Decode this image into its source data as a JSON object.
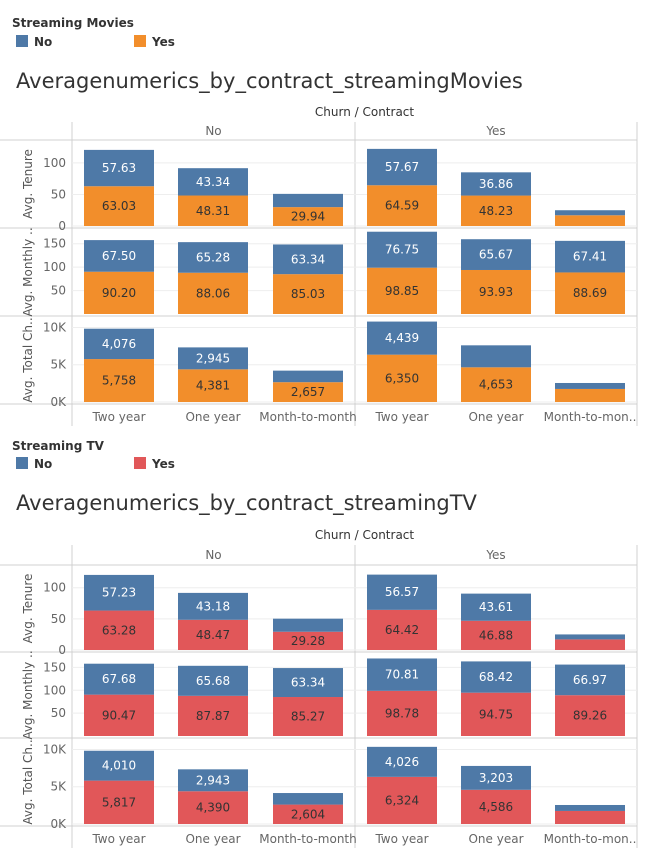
{
  "chart_data": [
    {
      "type": "bar",
      "stacked": true,
      "legend_title": "Streaming Movies",
      "legend": [
        {
          "label": "No",
          "color": "#4e79a7"
        },
        {
          "label": "Yes",
          "color": "#f28e2b"
        }
      ],
      "title": "Averagenumerics_by_contract_streamingMovies",
      "header_title": "Churn / Contract",
      "groups": [
        "No",
        "Yes"
      ],
      "categories": [
        "Two year",
        "One year",
        "Month-to-month"
      ],
      "category_labels": [
        [
          "Two year",
          "One year",
          "Month-to-month"
        ],
        [
          "Two year",
          "One year",
          "Month-to-mon.."
        ]
      ],
      "grid": true,
      "panels": [
        {
          "ylabel": "Avg. Tenure",
          "ylim": [
            0,
            130
          ],
          "ticks": [
            0,
            50,
            100
          ],
          "tick_labels": [
            "0",
            "50",
            "100"
          ],
          "values": {
            "No": {
              "No": [
                57.63,
                43.34,
                21.0
              ],
              "Yes": [
                63.03,
                48.31,
                29.94
              ]
            },
            "Yes": {
              "No": [
                57.67,
                36.86,
                8.0
              ],
              "Yes": [
                64.59,
                48.23,
                17.0
              ]
            }
          },
          "labels": {
            "No": {
              "No": [
                "57.63",
                "43.34",
                ""
              ],
              "Yes": [
                "63.03",
                "48.31",
                "29.94"
              ]
            },
            "Yes": {
              "No": [
                "57.67",
                "36.86",
                ""
              ],
              "Yes": [
                "64.59",
                "48.23",
                ""
              ]
            }
          }
        },
        {
          "ylabel": "Avg. Monthly ..",
          "ylim": [
            0,
            175
          ],
          "ticks": [
            50,
            100,
            150
          ],
          "tick_labels": [
            "50",
            "100",
            "150"
          ],
          "values": {
            "No": {
              "No": [
                67.5,
                65.28,
                63.34
              ],
              "Yes": [
                90.2,
                88.06,
                85.03
              ]
            },
            "Yes": {
              "No": [
                76.75,
                65.67,
                67.41
              ],
              "Yes": [
                98.85,
                93.93,
                88.69
              ]
            }
          },
          "labels": {
            "No": {
              "No": [
                "67.50",
                "65.28",
                "63.34"
              ],
              "Yes": [
                "90.20",
                "88.06",
                "85.03"
              ]
            },
            "Yes": {
              "No": [
                "76.75",
                "65.67",
                "67.41"
              ],
              "Yes": [
                "98.85",
                "93.93",
                "88.69"
              ]
            }
          }
        },
        {
          "ylabel": "Avg. Total Ch..",
          "ylim": [
            0,
            11000
          ],
          "ticks": [
            0,
            5000,
            10000
          ],
          "tick_labels": [
            "0K",
            "5K",
            "10K"
          ],
          "values": {
            "No": {
              "No": [
                4076,
                2945,
                1550
              ],
              "Yes": [
                5758,
                4381,
                2657
              ]
            },
            "Yes": {
              "No": [
                4439,
                2950,
                800
              ],
              "Yes": [
                6350,
                4653,
                1750
              ]
            }
          },
          "labels": {
            "No": {
              "No": [
                "4,076",
                "2,945",
                ""
              ],
              "Yes": [
                "5,758",
                "4,381",
                "2,657"
              ]
            },
            "Yes": {
              "No": [
                "4,439",
                "",
                ""
              ],
              "Yes": [
                "6,350",
                "4,653",
                ""
              ]
            }
          }
        }
      ]
    },
    {
      "type": "bar",
      "stacked": true,
      "legend_title": "Streaming TV",
      "legend": [
        {
          "label": "No",
          "color": "#4e79a7"
        },
        {
          "label": "Yes",
          "color": "#e15759"
        }
      ],
      "title": "Averagenumerics_by_contract_streamingTV",
      "header_title": "Churn / Contract",
      "groups": [
        "No",
        "Yes"
      ],
      "categories": [
        "Two year",
        "One year",
        "Month-to-month"
      ],
      "category_labels": [
        [
          "Two year",
          "One year",
          "Month-to-month"
        ],
        [
          "Two year",
          "One year",
          "Month-to-mon.."
        ]
      ],
      "grid": true,
      "panels": [
        {
          "ylabel": "Avg. Tenure",
          "ylim": [
            0,
            130
          ],
          "ticks": [
            0,
            50,
            100
          ],
          "tick_labels": [
            "0",
            "50",
            "100"
          ],
          "values": {
            "No": {
              "No": [
                57.23,
                43.18,
                21.0
              ],
              "Yes": [
                63.28,
                48.47,
                29.28
              ]
            },
            "Yes": {
              "No": [
                56.57,
                43.61,
                8.0
              ],
              "Yes": [
                64.42,
                46.88,
                17.0
              ]
            }
          },
          "labels": {
            "No": {
              "No": [
                "57.23",
                "43.18",
                ""
              ],
              "Yes": [
                "63.28",
                "48.47",
                "29.28"
              ]
            },
            "Yes": {
              "No": [
                "56.57",
                "43.61",
                ""
              ],
              "Yes": [
                "64.42",
                "46.88",
                ""
              ]
            }
          }
        },
        {
          "ylabel": "Avg. Monthly ..",
          "ylim": [
            0,
            175
          ],
          "ticks": [
            50,
            100,
            150
          ],
          "tick_labels": [
            "50",
            "100",
            "150"
          ],
          "values": {
            "No": {
              "No": [
                67.68,
                65.68,
                63.34
              ],
              "Yes": [
                90.47,
                87.87,
                85.27
              ]
            },
            "Yes": {
              "No": [
                70.81,
                68.42,
                66.97
              ],
              "Yes": [
                98.78,
                94.75,
                89.26
              ]
            }
          },
          "labels": {
            "No": {
              "No": [
                "67.68",
                "65.68",
                "63.34"
              ],
              "Yes": [
                "90.47",
                "87.87",
                "85.27"
              ]
            },
            "Yes": {
              "No": [
                "70.81",
                "68.42",
                "66.97"
              ],
              "Yes": [
                "98.78",
                "94.75",
                "89.26"
              ]
            }
          }
        },
        {
          "ylabel": "Avg. Total Ch..",
          "ylim": [
            0,
            11000
          ],
          "ticks": [
            0,
            5000,
            10000
          ],
          "tick_labels": [
            "0K",
            "5K",
            "10K"
          ],
          "values": {
            "No": {
              "No": [
                4010,
                2943,
                1550
              ],
              "Yes": [
                5817,
                4390,
                2604
              ]
            },
            "Yes": {
              "No": [
                4026,
                3203,
                800
              ],
              "Yes": [
                6324,
                4586,
                1750
              ]
            }
          },
          "labels": {
            "No": {
              "No": [
                "4,010",
                "2,943",
                ""
              ],
              "Yes": [
                "5,817",
                "4,390",
                "2,604"
              ]
            },
            "Yes": {
              "No": [
                "4,026",
                "3,203",
                ""
              ],
              "Yes": [
                "6,324",
                "4,586",
                ""
              ]
            }
          }
        }
      ]
    }
  ]
}
